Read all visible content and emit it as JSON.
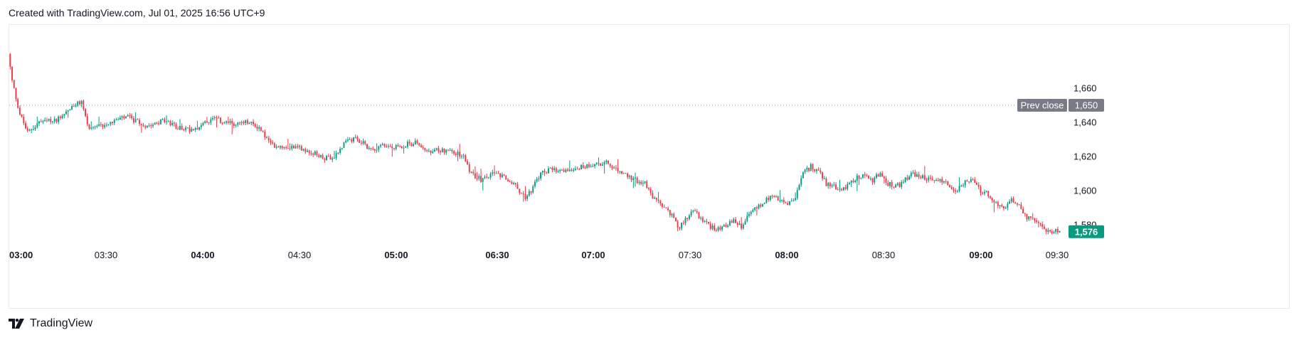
{
  "header": {
    "created_text": "Created with TradingView.com, Jul 01, 2025 16:56 UTC+9"
  },
  "footer": {
    "brand": "TradingView",
    "logo_icon": "tradingview-logo-icon"
  },
  "colors": {
    "up": "#089981",
    "down": "#f23645",
    "prev_close_label": "#787b86",
    "last_price_label": "#089981",
    "axis_text": "#131722",
    "grid_dots": "#9598a1"
  },
  "chart_data": {
    "type": "candlestick",
    "title": "",
    "xlabel": "",
    "ylabel": "",
    "ylim": [
      1568,
      1697
    ],
    "grid": false,
    "x_ticks": [
      {
        "label": "03:00",
        "bold": true
      },
      {
        "label": "03:30",
        "bold": false
      },
      {
        "label": "04:00",
        "bold": true
      },
      {
        "label": "04:30",
        "bold": false
      },
      {
        "label": "05:00",
        "bold": true
      },
      {
        "label": "06:30",
        "bold": true
      },
      {
        "label": "07:00",
        "bold": true
      },
      {
        "label": "07:30",
        "bold": false
      },
      {
        "label": "08:00",
        "bold": true
      },
      {
        "label": "08:30",
        "bold": false
      },
      {
        "label": "09:00",
        "bold": true
      },
      {
        "label": "09:30",
        "bold": false
      }
    ],
    "y_ticks": [
      1660,
      1640,
      1620,
      1600,
      1580
    ],
    "y_tick_labels": [
      "1,660",
      "1,640",
      "1,620",
      "1,600",
      "1,580"
    ],
    "prev_close": {
      "label": "Prev close",
      "value": 1650,
      "value_label": "1,650"
    },
    "last_price": {
      "value": 1576,
      "value_label": "1,576"
    },
    "price_path": [
      [
        0,
        1680
      ],
      [
        2,
        1664
      ],
      [
        6,
        1645
      ],
      [
        10,
        1634
      ],
      [
        16,
        1640
      ],
      [
        24,
        1641
      ],
      [
        32,
        1648
      ],
      [
        38,
        1652
      ],
      [
        42,
        1635
      ],
      [
        52,
        1640
      ],
      [
        62,
        1643
      ],
      [
        70,
        1638
      ],
      [
        80,
        1641
      ],
      [
        88,
        1637
      ],
      [
        94,
        1636
      ],
      [
        100,
        1638
      ],
      [
        106,
        1642
      ],
      [
        112,
        1640
      ],
      [
        118,
        1639
      ],
      [
        124,
        1640
      ],
      [
        130,
        1637
      ],
      [
        136,
        1627
      ],
      [
        142,
        1626
      ],
      [
        150,
        1626
      ],
      [
        156,
        1623
      ],
      [
        162,
        1620
      ],
      [
        168,
        1618
      ],
      [
        172,
        1625
      ],
      [
        176,
        1629
      ],
      [
        180,
        1630
      ],
      [
        184,
        1628
      ],
      [
        188,
        1624
      ],
      [
        194,
        1627
      ],
      [
        200,
        1625
      ],
      [
        206,
        1627
      ],
      [
        212,
        1628
      ],
      [
        218,
        1622
      ],
      [
        224,
        1624
      ],
      [
        230,
        1623
      ],
      [
        236,
        1620
      ],
      [
        240,
        1610
      ],
      [
        246,
        1606
      ],
      [
        250,
        1610
      ],
      [
        256,
        1608
      ],
      [
        262,
        1604
      ],
      [
        268,
        1596
      ],
      [
        272,
        1602
      ],
      [
        276,
        1610
      ],
      [
        280,
        1612
      ],
      [
        286,
        1611
      ],
      [
        292,
        1613
      ],
      [
        298,
        1614
      ],
      [
        304,
        1616
      ],
      [
        310,
        1616
      ],
      [
        314,
        1613
      ],
      [
        318,
        1610
      ],
      [
        322,
        1608
      ],
      [
        326,
        1606
      ],
      [
        330,
        1604
      ],
      [
        334,
        1596
      ],
      [
        338,
        1592
      ],
      [
        344,
        1586
      ],
      [
        348,
        1578
      ],
      [
        352,
        1585
      ],
      [
        356,
        1588
      ],
      [
        360,
        1582
      ],
      [
        364,
        1579
      ],
      [
        368,
        1578
      ],
      [
        372,
        1580
      ],
      [
        376,
        1582
      ],
      [
        380,
        1579
      ],
      [
        384,
        1586
      ],
      [
        388,
        1590
      ],
      [
        392,
        1594
      ],
      [
        396,
        1597
      ],
      [
        400,
        1594
      ],
      [
        404,
        1592
      ],
      [
        408,
        1596
      ],
      [
        412,
        1610
      ],
      [
        416,
        1614
      ],
      [
        420,
        1612
      ],
      [
        424,
        1604
      ],
      [
        428,
        1603
      ],
      [
        432,
        1599
      ],
      [
        436,
        1605
      ],
      [
        440,
        1608
      ],
      [
        444,
        1609
      ],
      [
        448,
        1606
      ],
      [
        452,
        1610
      ],
      [
        456,
        1604
      ],
      [
        460,
        1602
      ],
      [
        464,
        1605
      ],
      [
        468,
        1610
      ],
      [
        472,
        1608
      ],
      [
        476,
        1607
      ],
      [
        480,
        1606
      ],
      [
        484,
        1606
      ],
      [
        488,
        1603
      ],
      [
        492,
        1600
      ],
      [
        496,
        1606
      ],
      [
        500,
        1605
      ],
      [
        504,
        1600
      ],
      [
        508,
        1598
      ],
      [
        512,
        1592
      ],
      [
        516,
        1589
      ],
      [
        520,
        1594
      ],
      [
        524,
        1592
      ],
      [
        528,
        1584
      ],
      [
        532,
        1582
      ],
      [
        536,
        1578
      ],
      [
        540,
        1576
      ],
      [
        544,
        1576
      ]
    ]
  }
}
